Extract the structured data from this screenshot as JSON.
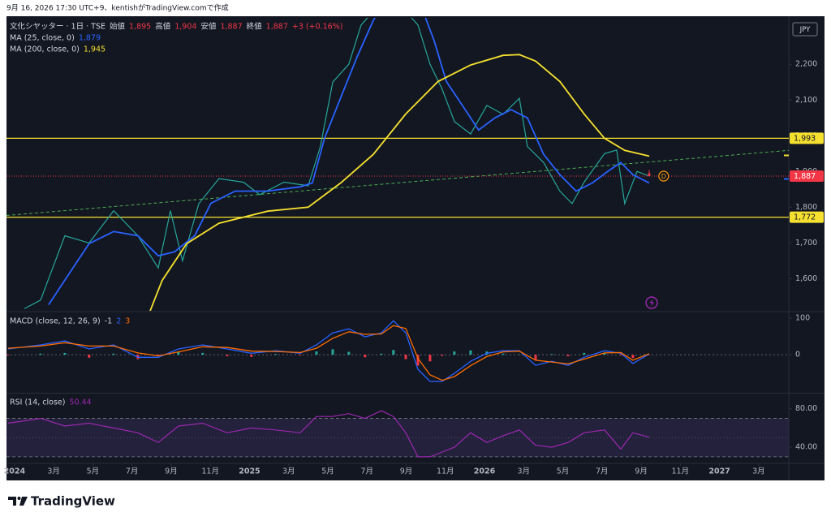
{
  "caption": "9月 16, 2026 17:30 UTC+9、kentishがTradingView.comで作成",
  "footer": {
    "logo_text": "TradingView"
  },
  "chart_data": [
    {
      "type": "line",
      "currency": "JPY",
      "xlim": [
        -0.41,
        39.54
      ],
      "ylim": [
        1510,
        2330
      ],
      "yticks": [
        {
          "value": 1600,
          "label": "1,600"
        },
        {
          "value": 1700,
          "label": "1,700"
        },
        {
          "value": 1800,
          "label": "1,800"
        },
        {
          "value": 1900,
          "label": "1,900"
        },
        {
          "value": 2000,
          "label": "2,000"
        },
        {
          "value": 2100,
          "label": "2,100"
        },
        {
          "value": 2200,
          "label": "2,200"
        }
      ],
      "grid": false,
      "ohlc_labels": [
        "始値",
        "高値",
        "安値",
        "終値"
      ],
      "ohlc_values": [
        1895,
        1904,
        1887,
        1887
      ],
      "ohlc_value_labels": [
        "1,895",
        "1,904",
        "1,887",
        "1,887"
      ],
      "ohlc_x": 32.41,
      "change": "+3 (+0.16%)",
      "series": [
        {
          "name": "文化シヤッター · 1日 · TSE",
          "color": "#26a69a",
          "x": [
            0.5,
            1.33,
            2.57,
            3.81,
            5.06,
            6.3,
            7.34,
            7.96,
            8.58,
            9.41,
            10.44,
            11.69,
            12.52,
            13.76,
            15.0,
            15.62,
            16.25,
            17.07,
            17.7,
            19.15,
            20.6,
            21.22,
            21.84,
            22.46,
            23.29,
            24.12,
            24.95,
            25.78,
            26.19,
            27.02,
            27.85,
            28.47,
            29.09,
            30.13,
            30.75,
            31.16,
            31.79,
            32.41
          ],
          "values": [
            1516,
            1540,
            1720,
            1700,
            1790,
            1720,
            1630,
            1790,
            1650,
            1810,
            1880,
            1870,
            1835,
            1870,
            1860,
            1970,
            2150,
            2200,
            2310,
            2400,
            2310,
            2200,
            2130,
            2040,
            2005,
            2085,
            2060,
            2105,
            1970,
            1925,
            1845,
            1810,
            1870,
            1950,
            1960,
            1810,
            1900,
            1887
          ]
        },
        {
          "name": "MA (25, close, 0)",
          "color": "#2962ff",
          "last_value": 1879,
          "last_label": "1,879",
          "x": [
            1.74,
            2.98,
            3.81,
            5.06,
            6.3,
            7.34,
            8.16,
            9.2,
            10.03,
            11.27,
            12.93,
            14.59,
            15.21,
            15.83,
            16.66,
            17.49,
            18.32,
            19.15,
            20.8,
            21.43,
            22.05,
            22.88,
            23.7,
            24.53,
            25.36,
            26.19,
            27.02,
            27.85,
            28.68,
            29.51,
            30.34,
            30.96,
            31.58,
            32.41
          ],
          "values": [
            1527,
            1630,
            1698,
            1732,
            1720,
            1664,
            1675,
            1720,
            1811,
            1845,
            1845,
            1857,
            1868,
            1993,
            2107,
            2220,
            2323,
            2391,
            2357,
            2266,
            2152,
            2084,
            2016,
            2050,
            2073,
            2050,
            1948,
            1891,
            1845,
            1868,
            1902,
            1925,
            1891,
            1868
          ]
        },
        {
          "name": "MA (200, close, 0)",
          "color": "#f5e02f",
          "last_value": 1945,
          "last_label": "1,945",
          "x": [
            6.92,
            7.54,
            8.79,
            10.44,
            12.93,
            15.0,
            16.66,
            18.32,
            19.98,
            21.63,
            23.29,
            24.95,
            25.78,
            26.61,
            27.85,
            29.09,
            30.13,
            31.16,
            32.41
          ],
          "values": [
            1509,
            1595,
            1698,
            1755,
            1789,
            1800,
            1868,
            1948,
            2061,
            2152,
            2198,
            2225,
            2227,
            2209,
            2152,
            2061,
            1993,
            1959,
            1943
          ]
        }
      ],
      "hlines": [
        {
          "value": 1993,
          "label": "1,993",
          "color": "#f5e02f"
        },
        {
          "value": 1772,
          "label": "1,772",
          "color": "#f5e02f"
        }
      ],
      "last_price": {
        "value": 1887,
        "label": "1,887",
        "color": "#f23645"
      },
      "trendline": {
        "x": [
          -0.41,
          39.54
        ],
        "values": [
          1777,
          1959
        ],
        "color": "#4caf50"
      },
      "events": [
        {
          "x": 33.15,
          "label": "D",
          "color": "#ff9800"
        }
      ]
    },
    {
      "type": "macd",
      "title": "MACD (close, 12, 26, 9)",
      "xlim": [
        -0.41,
        39.54
      ],
      "ylim": [
        -102,
        116
      ],
      "yticks": [
        0,
        100
      ],
      "x": [
        -0.33,
        1.33,
        2.57,
        3.81,
        5.06,
        6.3,
        7.34,
        8.37,
        9.61,
        10.86,
        12.1,
        13.34,
        14.59,
        15.42,
        16.25,
        17.07,
        17.9,
        18.73,
        19.35,
        19.98,
        20.6,
        21.22,
        21.84,
        22.46,
        23.29,
        24.12,
        24.95,
        25.78,
        26.61,
        27.44,
        28.27,
        29.09,
        30.13,
        30.96,
        31.58,
        32.41
      ],
      "histogram": {
        "up_color": "#26a69a",
        "down_color": "#f23645",
        "label_color": "#d1d4dc",
        "values": [
          -2,
          3,
          5,
          -8,
          3,
          -12,
          -4,
          8,
          5,
          -4,
          -6,
          2,
          -2,
          9,
          15,
          8,
          -7,
          3,
          13,
          -12,
          -30,
          -18,
          -3,
          9,
          12,
          9,
          3,
          1,
          -14,
          2,
          -4,
          5,
          6,
          -2,
          -9,
          -1
        ]
      },
      "series": [
        {
          "color": "#2962ff",
          "values": [
            16,
            27,
            38,
            16,
            27,
            -7,
            -7,
            16,
            27,
            16,
            4,
            11,
            4,
            27,
            60,
            71,
            49,
            60,
            93,
            60,
            -40,
            -73,
            -73,
            -51,
            -18,
            4,
            11,
            11,
            -29,
            -18,
            -29,
            -7,
            11,
            4,
            -24,
            2
          ]
        },
        {
          "color": "#ff6d00",
          "values": [
            18,
            24,
            33,
            24,
            24,
            5,
            -3,
            8,
            22,
            20,
            10,
            9,
            6,
            18,
            45,
            63,
            56,
            57,
            80,
            72,
            -10,
            -55,
            -70,
            -60,
            -30,
            -5,
            8,
            10,
            -15,
            -20,
            -25,
            -12,
            5,
            6,
            -15,
            3
          ]
        }
      ]
    },
    {
      "type": "rsi",
      "title": "RSI (14, close)",
      "xlim": [
        -0.41,
        39.54
      ],
      "ylim": [
        24,
        95
      ],
      "yticks": [
        {
          "value": 40,
          "label": "40.00"
        },
        {
          "value": 80,
          "label": "80.00"
        }
      ],
      "upper_band": 70,
      "lower_band": 30,
      "middle_line": 50,
      "x": [
        -0.33,
        1.33,
        2.57,
        3.81,
        5.06,
        6.3,
        7.34,
        8.37,
        9.61,
        10.86,
        12.1,
        13.34,
        14.59,
        15.42,
        16.25,
        17.07,
        17.9,
        18.73,
        19.35,
        19.98,
        20.6,
        21.22,
        21.84,
        22.46,
        23.29,
        24.12,
        24.95,
        25.78,
        26.61,
        27.44,
        28.27,
        29.09,
        30.13,
        30.96,
        31.58,
        32.41
      ],
      "series": [
        {
          "color": "#9c27b0",
          "values": [
            65,
            70,
            62,
            65,
            60,
            55,
            45,
            62,
            65,
            55,
            60,
            58,
            55,
            72,
            72,
            75,
            70,
            78,
            72,
            55,
            30,
            30,
            35,
            40,
            55,
            45,
            52,
            58,
            42,
            40,
            45,
            55,
            58,
            38,
            55,
            50.44
          ]
        }
      ],
      "xticks": [
        {
          "value": 0,
          "label": "2024"
        },
        {
          "value": 2,
          "label": "3月"
        },
        {
          "value": 4,
          "label": "5月"
        },
        {
          "value": 6,
          "label": "7月"
        },
        {
          "value": 8,
          "label": "9月"
        },
        {
          "value": 10,
          "label": "11月"
        },
        {
          "value": 12,
          "label": "2025"
        },
        {
          "value": 14,
          "label": "3月"
        },
        {
          "value": 16,
          "label": "5月"
        },
        {
          "value": 18,
          "label": "7月"
        },
        {
          "value": 20,
          "label": "9月"
        },
        {
          "value": 22,
          "label": "11月"
        },
        {
          "value": 24,
          "label": "2026"
        },
        {
          "value": 26,
          "label": "3月"
        },
        {
          "value": 28,
          "label": "5月"
        },
        {
          "value": 30,
          "label": "7月"
        },
        {
          "value": 32,
          "label": "9月"
        },
        {
          "value": 34,
          "label": "11月"
        },
        {
          "value": 36,
          "label": "2027"
        },
        {
          "value": 38,
          "label": "3月"
        }
      ]
    }
  ]
}
